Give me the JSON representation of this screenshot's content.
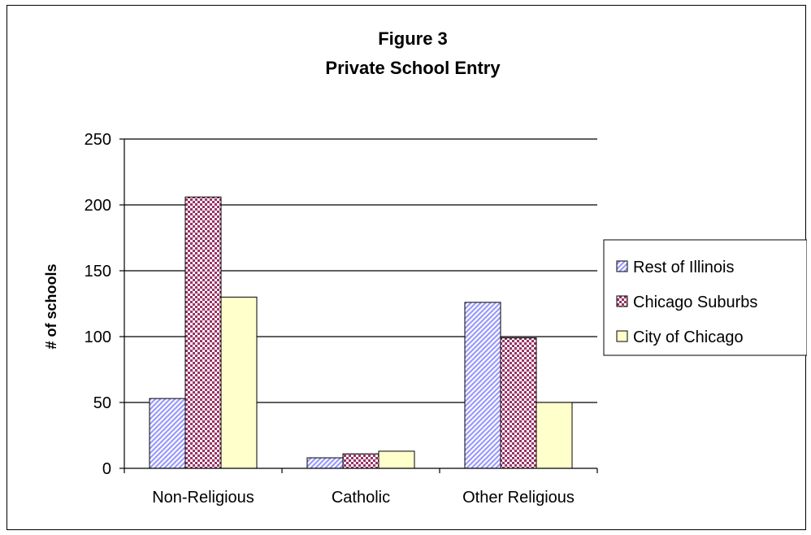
{
  "chart_data": {
    "type": "bar",
    "title": "Figure 3",
    "subtitle": "Private School Entry",
    "xlabel": "",
    "ylabel": "# of schools",
    "ylim": [
      0,
      250
    ],
    "yticks": [
      0,
      50,
      100,
      150,
      200,
      250
    ],
    "categories": [
      "Non-Religious",
      "Catholic",
      "Other Religious"
    ],
    "series": [
      {
        "name": "Rest of Illinois",
        "values": [
          53,
          8,
          126
        ],
        "color": "#9999ff",
        "pattern": "diagonal-hatch"
      },
      {
        "name": "Chicago Suburbs",
        "values": [
          206,
          11,
          99
        ],
        "color": "#993366",
        "pattern": "checker"
      },
      {
        "name": "City of Chicago",
        "values": [
          130,
          13,
          50
        ],
        "color": "#ffffcc",
        "pattern": "solid"
      }
    ],
    "grid": true,
    "legend": "right"
  }
}
